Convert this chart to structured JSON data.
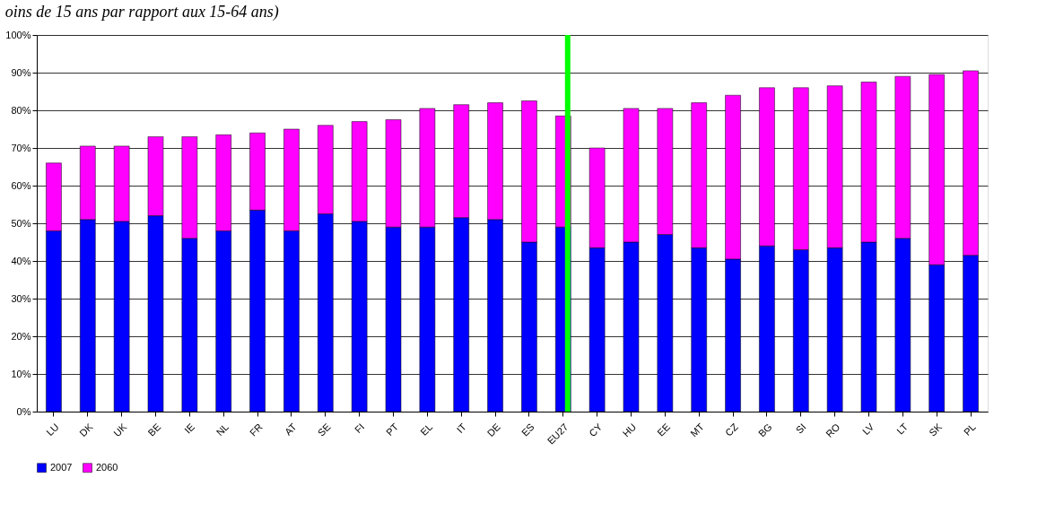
{
  "chart_data": {
    "type": "bar",
    "title": "oins de 15 ans par rapport aux 15-64 ans)",
    "categories": [
      "LU",
      "DK",
      "UK",
      "BE",
      "IE",
      "NL",
      "FR",
      "AT",
      "SE",
      "FI",
      "PT",
      "EL",
      "IT",
      "DE",
      "ES",
      "EU27",
      "CY",
      "HU",
      "EE",
      "MT",
      "CZ",
      "BG",
      "SI",
      "RO",
      "LV",
      "LT",
      "SK",
      "PL"
    ],
    "stacked": true,
    "series": [
      {
        "name": "2007",
        "color": "#0000ff",
        "values": [
          48,
          51,
          50.5,
          52,
          46,
          48,
          53.5,
          48,
          52.5,
          50.5,
          49,
          49,
          51.5,
          51,
          45,
          49,
          43.5,
          45,
          47,
          43.5,
          40.5,
          44,
          43,
          43.5,
          45,
          46,
          39,
          41.5
        ]
      },
      {
        "name": "2060",
        "color": "#ff00ff",
        "values": [
          18,
          19.5,
          20,
          21,
          27,
          25.5,
          20.5,
          27,
          23.5,
          26.5,
          28.5,
          31.5,
          30,
          31,
          37.5,
          29.5,
          26.5,
          35.5,
          33.5,
          38.5,
          43.5,
          42,
          43,
          43,
          42.5,
          43,
          50.5,
          49
        ]
      }
    ],
    "ylim": [
      0,
      100
    ],
    "yticks": [
      {
        "value": 0,
        "label": "0%"
      },
      {
        "value": 10,
        "label": "10%"
      },
      {
        "value": 20,
        "label": "20%"
      },
      {
        "value": 30,
        "label": "30%"
      },
      {
        "value": 40,
        "label": "40%"
      },
      {
        "value": 50,
        "label": "50%"
      },
      {
        "value": 60,
        "label": "60%"
      },
      {
        "value": 70,
        "label": "70%"
      },
      {
        "value": 80,
        "label": "80%"
      },
      {
        "value": 90,
        "label": "90%"
      },
      {
        "value": 100,
        "label": "100%"
      }
    ],
    "grid": "y",
    "legend": "bottom",
    "ref_lines": [
      {
        "axis": "x",
        "value": "EU27",
        "color": "#00ff00"
      }
    ]
  }
}
